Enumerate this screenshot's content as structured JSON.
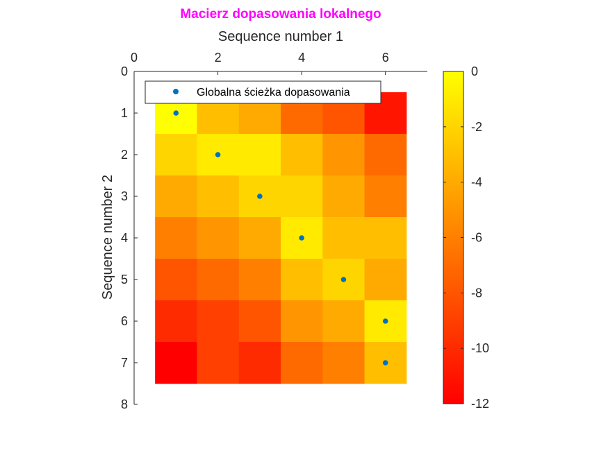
{
  "chart_data": {
    "type": "heatmap",
    "title": "Macierz dopasowania lokalnego",
    "title_color": "#FF00FF",
    "xlabel": "Sequence number 1",
    "ylabel": "Sequence number 2",
    "x_axis_location": "top",
    "y_axis_direction": "reverse",
    "xlim": [
      0,
      7
    ],
    "ylim": [
      0,
      8
    ],
    "xticks": [
      "0",
      "2",
      "4",
      "6"
    ],
    "yticks": [
      "0",
      "1",
      "2",
      "3",
      "4",
      "5",
      "6",
      "7",
      "8"
    ],
    "columns": [
      1,
      2,
      3,
      4,
      5,
      6
    ],
    "rows": [
      1,
      2,
      3,
      4,
      5,
      6,
      7
    ],
    "values": [
      [
        0,
        -3,
        -4,
        -7,
        -8,
        -11
      ],
      [
        -2,
        -1,
        -1,
        -3,
        -5,
        -7
      ],
      [
        -4,
        -3,
        -2,
        -2,
        -4,
        -6
      ],
      [
        -6,
        -5,
        -4,
        -1,
        -3,
        -3
      ],
      [
        -8,
        -7,
        -6,
        -3,
        -2,
        -4
      ],
      [
        -10,
        -9,
        -8,
        -5,
        -4,
        -1
      ],
      [
        -12,
        -9,
        -10,
        -7,
        -6,
        -3
      ]
    ],
    "colormap": "autumn",
    "colormap_colors": [
      "#FF0000",
      "#FFFF00"
    ],
    "colorbar": {
      "min": -12,
      "max": 0,
      "ticks": [
        "0",
        "-2",
        "-4",
        "-6",
        "-8",
        "-10",
        "-12"
      ]
    },
    "path_series": {
      "name": "Globalna ścieżka dopasowania",
      "color": "#0072BD",
      "points": [
        [
          1,
          1
        ],
        [
          2,
          2
        ],
        [
          3,
          3
        ],
        [
          4,
          4
        ],
        [
          5,
          5
        ],
        [
          6,
          6
        ],
        [
          6,
          7
        ]
      ]
    },
    "legend_position": "top-left"
  }
}
